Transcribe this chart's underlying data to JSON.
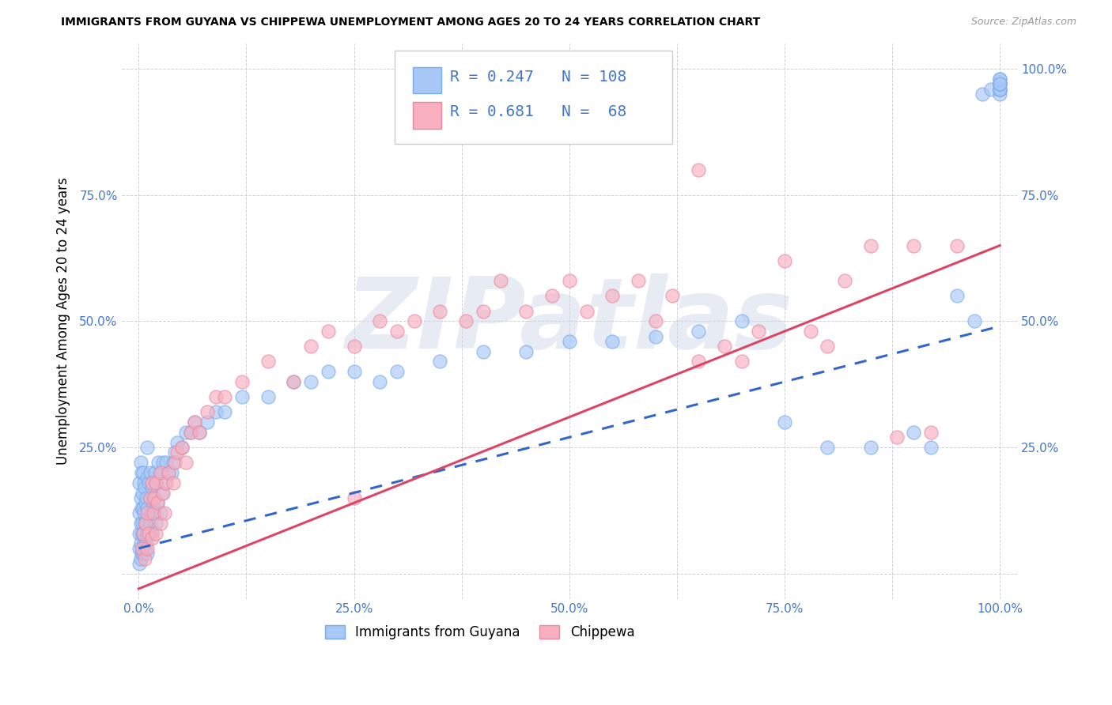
{
  "title": "IMMIGRANTS FROM GUYANA VS CHIPPEWA UNEMPLOYMENT AMONG AGES 20 TO 24 YEARS CORRELATION CHART",
  "source": "Source: ZipAtlas.com",
  "ylabel": "Unemployment Among Ages 20 to 24 years",
  "xlim": [
    -0.02,
    1.02
  ],
  "ylim": [
    -0.05,
    1.05
  ],
  "ytick_labels_left": [
    "",
    "25.0%",
    "50.0%",
    "75.0%",
    ""
  ],
  "ytick_labels_right": [
    "",
    "25.0%",
    "50.0%",
    "75.0%",
    "100.0%"
  ],
  "ytick_positions": [
    0.0,
    0.25,
    0.5,
    0.75,
    1.0
  ],
  "xtick_labels": [
    "0.0%",
    "",
    "25.0%",
    "",
    "50.0%",
    "",
    "75.0%",
    "",
    "100.0%"
  ],
  "xtick_positions": [
    0.0,
    0.125,
    0.25,
    0.375,
    0.5,
    0.625,
    0.75,
    0.875,
    1.0
  ],
  "legend_labels": [
    "Immigrants from Guyana",
    "Chippewa"
  ],
  "legend_R": [
    0.247,
    0.681
  ],
  "legend_N": [
    108,
    68
  ],
  "blue_color": "#a8c8f8",
  "blue_edge_color": "#7aaae8",
  "pink_color": "#f8b0c0",
  "pink_edge_color": "#e888a0",
  "blue_line_color": "#3366cc",
  "pink_line_color": "#dd4466",
  "tick_color": "#4477cc",
  "watermark_text": "ZIPatlas",
  "blue_line_intercept": 0.05,
  "blue_line_slope": 0.44,
  "pink_line_intercept": -0.03,
  "pink_line_slope": 0.68,
  "blue_scatter_x": [
    0.001,
    0.001,
    0.001,
    0.001,
    0.001,
    0.002,
    0.002,
    0.002,
    0.002,
    0.002,
    0.003,
    0.003,
    0.003,
    0.003,
    0.004,
    0.004,
    0.004,
    0.005,
    0.005,
    0.005,
    0.005,
    0.006,
    0.006,
    0.006,
    0.007,
    0.007,
    0.007,
    0.008,
    0.008,
    0.009,
    0.009,
    0.01,
    0.01,
    0.01,
    0.01,
    0.01,
    0.012,
    0.012,
    0.013,
    0.013,
    0.014,
    0.015,
    0.015,
    0.016,
    0.017,
    0.018,
    0.019,
    0.02,
    0.02,
    0.022,
    0.023,
    0.025,
    0.025,
    0.027,
    0.028,
    0.03,
    0.032,
    0.035,
    0.038,
    0.04,
    0.042,
    0.045,
    0.05,
    0.055,
    0.06,
    0.065,
    0.07,
    0.08,
    0.09,
    0.1,
    0.12,
    0.15,
    0.18,
    0.2,
    0.22,
    0.25,
    0.28,
    0.3,
    0.35,
    0.4,
    0.45,
    0.5,
    0.55,
    0.6,
    0.65,
    0.7,
    0.75,
    0.8,
    0.85,
    0.9,
    0.92,
    0.95,
    0.97,
    0.98,
    0.99,
    1.0,
    1.0,
    1.0,
    1.0,
    1.0,
    1.0,
    1.0,
    1.0,
    1.0,
    1.0,
    1.0,
    1.0,
    1.0
  ],
  "blue_scatter_y": [
    0.02,
    0.05,
    0.08,
    0.12,
    0.18,
    0.03,
    0.06,
    0.1,
    0.15,
    0.22,
    0.04,
    0.08,
    0.13,
    0.2,
    0.05,
    0.1,
    0.16,
    0.04,
    0.08,
    0.13,
    0.2,
    0.06,
    0.12,
    0.18,
    0.05,
    0.1,
    0.17,
    0.07,
    0.14,
    0.06,
    0.15,
    0.04,
    0.08,
    0.13,
    0.19,
    0.25,
    0.09,
    0.18,
    0.1,
    0.2,
    0.12,
    0.08,
    0.17,
    0.14,
    0.15,
    0.12,
    0.2,
    0.1,
    0.18,
    0.14,
    0.22,
    0.12,
    0.2,
    0.16,
    0.22,
    0.18,
    0.22,
    0.2,
    0.2,
    0.22,
    0.24,
    0.26,
    0.25,
    0.28,
    0.28,
    0.3,
    0.28,
    0.3,
    0.32,
    0.32,
    0.35,
    0.35,
    0.38,
    0.38,
    0.4,
    0.4,
    0.38,
    0.4,
    0.42,
    0.44,
    0.44,
    0.46,
    0.46,
    0.47,
    0.48,
    0.5,
    0.3,
    0.25,
    0.25,
    0.28,
    0.25,
    0.55,
    0.5,
    0.95,
    0.96,
    0.95,
    0.96,
    0.97,
    0.96,
    0.97,
    0.96,
    0.97,
    0.98,
    0.97,
    0.96,
    0.97,
    0.98,
    0.97
  ],
  "pink_scatter_x": [
    0.003,
    0.005,
    0.007,
    0.008,
    0.01,
    0.01,
    0.012,
    0.013,
    0.015,
    0.015,
    0.017,
    0.018,
    0.02,
    0.02,
    0.022,
    0.025,
    0.025,
    0.028,
    0.03,
    0.032,
    0.035,
    0.04,
    0.042,
    0.045,
    0.05,
    0.055,
    0.06,
    0.065,
    0.07,
    0.08,
    0.09,
    0.1,
    0.12,
    0.15,
    0.18,
    0.2,
    0.22,
    0.25,
    0.28,
    0.3,
    0.32,
    0.35,
    0.38,
    0.4,
    0.42,
    0.45,
    0.48,
    0.5,
    0.52,
    0.55,
    0.58,
    0.6,
    0.62,
    0.65,
    0.65,
    0.68,
    0.7,
    0.72,
    0.75,
    0.78,
    0.8,
    0.82,
    0.85,
    0.88,
    0.9,
    0.92,
    0.95,
    0.25
  ],
  "pink_scatter_y": [
    0.05,
    0.08,
    0.03,
    0.1,
    0.05,
    0.12,
    0.08,
    0.15,
    0.07,
    0.18,
    0.12,
    0.15,
    0.08,
    0.18,
    0.14,
    0.1,
    0.2,
    0.16,
    0.12,
    0.18,
    0.2,
    0.18,
    0.22,
    0.24,
    0.25,
    0.22,
    0.28,
    0.3,
    0.28,
    0.32,
    0.35,
    0.35,
    0.38,
    0.42,
    0.38,
    0.45,
    0.48,
    0.45,
    0.5,
    0.48,
    0.5,
    0.52,
    0.5,
    0.52,
    0.58,
    0.52,
    0.55,
    0.58,
    0.52,
    0.55,
    0.58,
    0.5,
    0.55,
    0.42,
    0.8,
    0.45,
    0.42,
    0.48,
    0.62,
    0.48,
    0.45,
    0.58,
    0.65,
    0.27,
    0.65,
    0.28,
    0.65,
    0.15
  ]
}
